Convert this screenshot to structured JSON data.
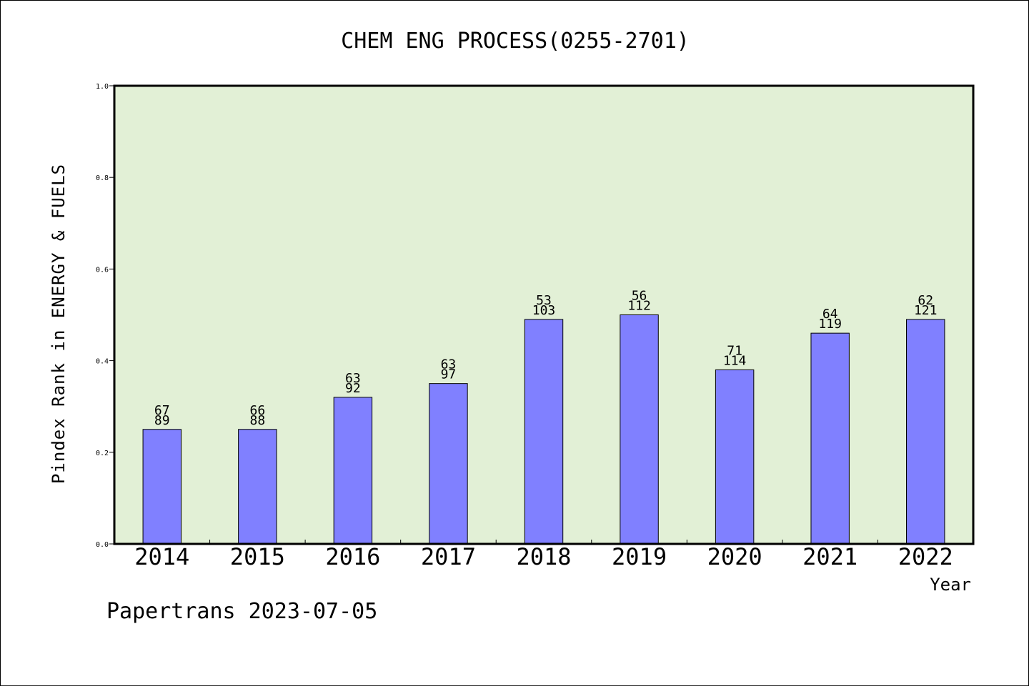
{
  "chart_data": {
    "type": "bar",
    "title": "CHEM ENG PROCESS(0255-2701)",
    "xlabel": "Year",
    "ylabel": "Pindex Rank in ENERGY & FUELS",
    "categories": [
      "2014",
      "2015",
      "2016",
      "2017",
      "2018",
      "2019",
      "2020",
      "2021",
      "2022"
    ],
    "values": [
      0.25,
      0.25,
      0.32,
      0.35,
      0.49,
      0.5,
      0.38,
      0.46,
      0.49
    ],
    "rank_labels": [
      "67",
      "66",
      "63",
      "63",
      "53",
      "56",
      "71",
      "64",
      "62"
    ],
    "total_labels": [
      "89",
      "88",
      "92",
      "97",
      "103",
      "112",
      "114",
      "119",
      "121"
    ],
    "ylim": [
      0,
      1.0
    ],
    "yticks": [
      "0.0",
      "0.2",
      "0.4",
      "0.6",
      "0.8",
      "1.0"
    ],
    "ytick_values": [
      0,
      0.2,
      0.4,
      0.6,
      0.8,
      1.0
    ],
    "grid": false,
    "legend": "none"
  },
  "footer": "Papertrans 2023-07-05",
  "colors": {
    "plot_background": "#e2f0d6",
    "bar_fill": "#8080ff",
    "bar_stroke": "#000000"
  }
}
